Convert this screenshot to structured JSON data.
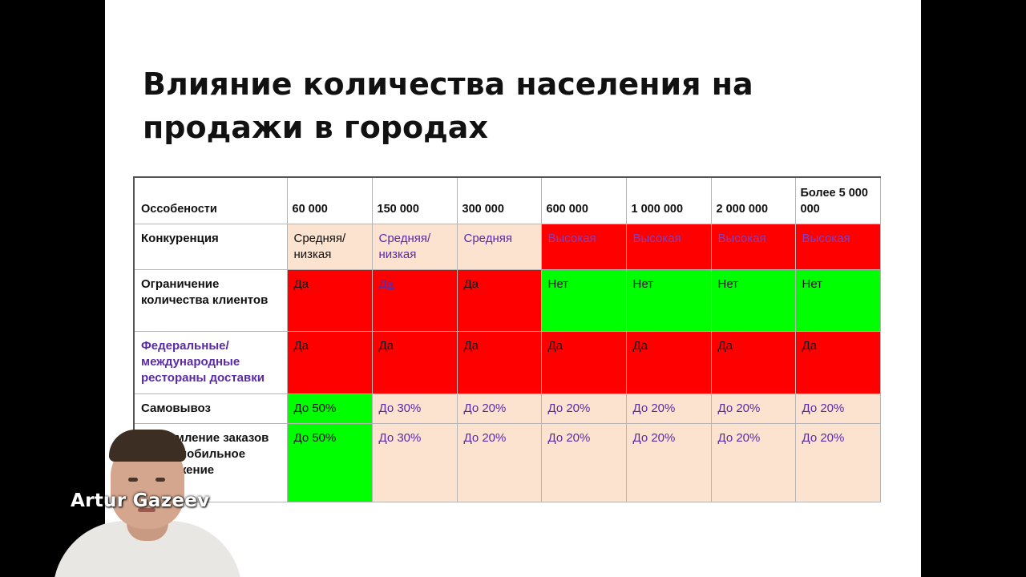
{
  "slide": {
    "title_line1": "Влияние количества населения на",
    "title_line2": "продажи в городах"
  },
  "table": {
    "header_label": "Оссобености",
    "columns": [
      "60 000",
      "150 000",
      "300 000",
      "600 000",
      "1 000 000",
      "2 000 000",
      "Более 5 000 000"
    ],
    "rows": [
      {
        "label": "Конкуренция",
        "cells": [
          "Средняя/низкая",
          "Средняя/низкая",
          "Средняя",
          "Высокая",
          "Высокая",
          "Высокая",
          "Высокая"
        ]
      },
      {
        "label": "Ограничение количества клиентов",
        "cells": [
          "Да",
          "Да",
          "Да",
          "Нет",
          "Нет",
          "Нет",
          "Нет"
        ]
      },
      {
        "label": "Федеральные/международные рестораны доставки",
        "cells": [
          "Да",
          "Да",
          "Да",
          "Да",
          "Да",
          "Да",
          "Да"
        ]
      },
      {
        "label": "Самовывоз",
        "cells": [
          "До 50%",
          "До 30%",
          "До 20%",
          "До 20%",
          "До 20%",
          "До 20%",
          "До 20%"
        ]
      },
      {
        "label": "Оформление заказов через мобильное приложение",
        "cells": [
          "До 50%",
          "До 30%",
          "До 20%",
          "До 20%",
          "До 20%",
          "До 20%",
          "До 20%"
        ]
      }
    ]
  },
  "webcam": {
    "presenter_name": "Artur Gazeev"
  },
  "colors": {
    "peach": "#fbe3d0",
    "red": "#ff0000",
    "green": "#00ff00",
    "purple": "#5b2aa8"
  }
}
